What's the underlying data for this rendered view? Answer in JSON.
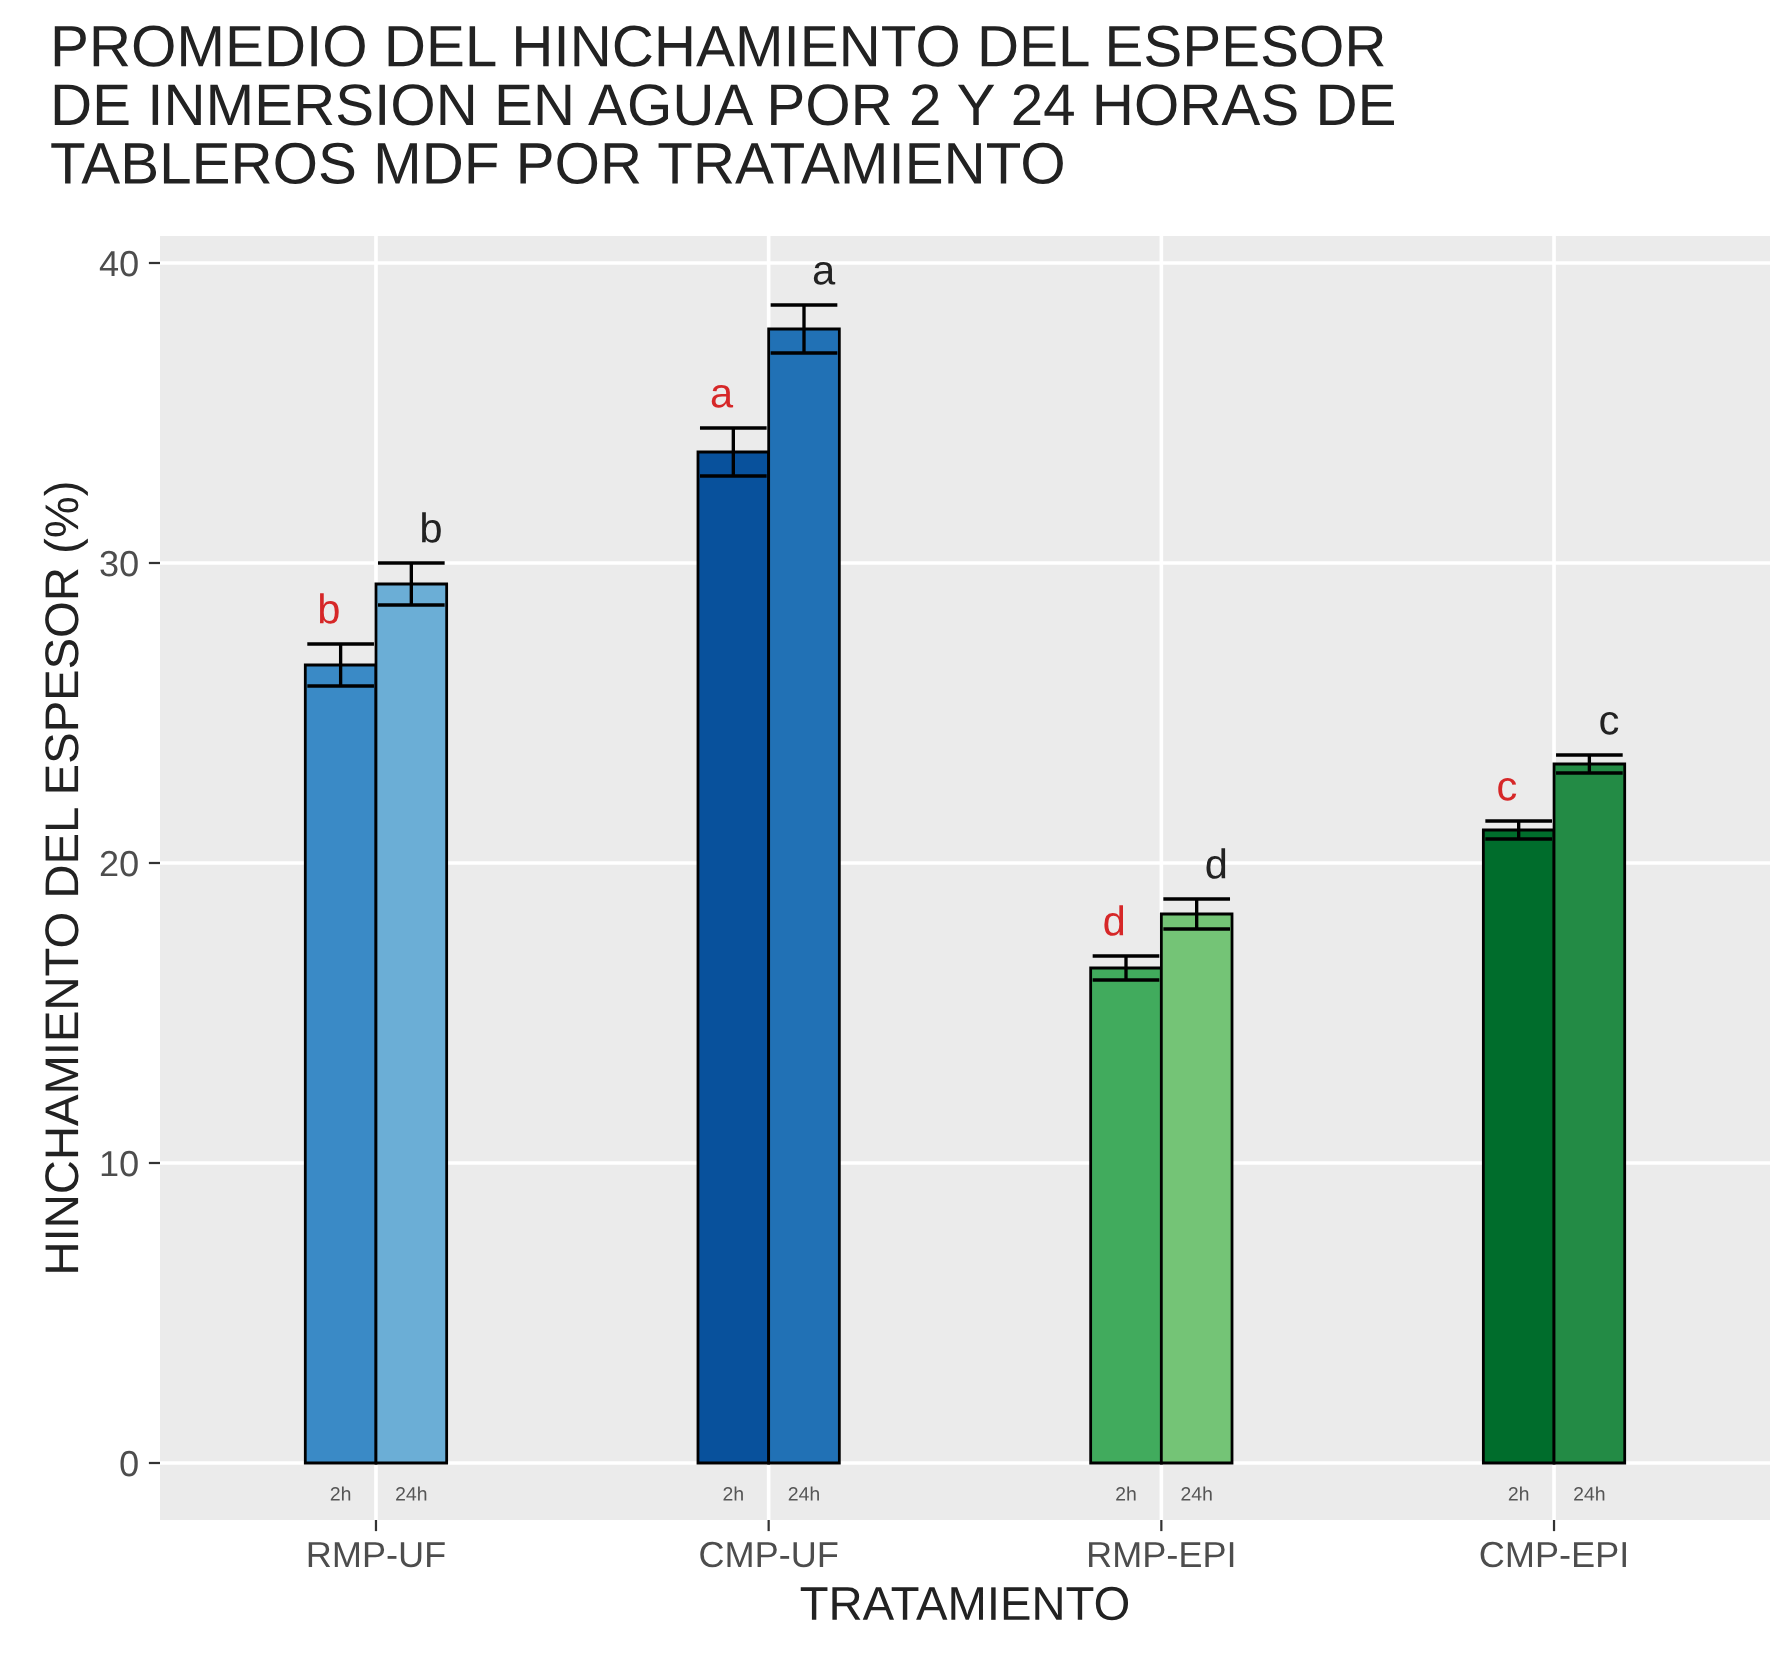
{
  "chart_data": {
    "type": "bar",
    "title": "PROMEDIO DEL HINCHAMIENTO DEL ESPESOR\nDE INMERSION EN AGUA POR 2 Y 24 HORAS DE\nTABLEROS MDF POR TRATAMIENTO",
    "xlabel": "TRATAMIENTO",
    "ylabel": "HINCHAMIENTO DEL ESPESOR (%)",
    "categories": [
      "RMP-UF",
      "CMP-UF",
      "RMP-EPI",
      "CMP-EPI"
    ],
    "series": [
      {
        "name": "2h",
        "colors": [
          "#3a8ac6",
          "#08519c",
          "#41ab5d",
          "#006d2c"
        ],
        "values": [
          26.6,
          33.7,
          16.5,
          21.1
        ],
        "errors": [
          0.7,
          0.8,
          0.4,
          0.3
        ],
        "value_labels": [
          "b",
          "a",
          "d",
          "c"
        ]
      },
      {
        "name": "24h",
        "colors": [
          "#6baed6",
          "#2171b5",
          "#74c476",
          "#238b45"
        ],
        "values": [
          29.3,
          37.8,
          18.3,
          23.3
        ],
        "errors": [
          0.7,
          0.8,
          0.5,
          0.3
        ],
        "value_labels": [
          "b",
          "a",
          "d",
          "c"
        ]
      }
    ],
    "ylim": [
      -1.9,
      40.9
    ],
    "yticks": [
      0,
      10,
      20,
      30,
      40
    ],
    "grid": true,
    "legend": false
  }
}
